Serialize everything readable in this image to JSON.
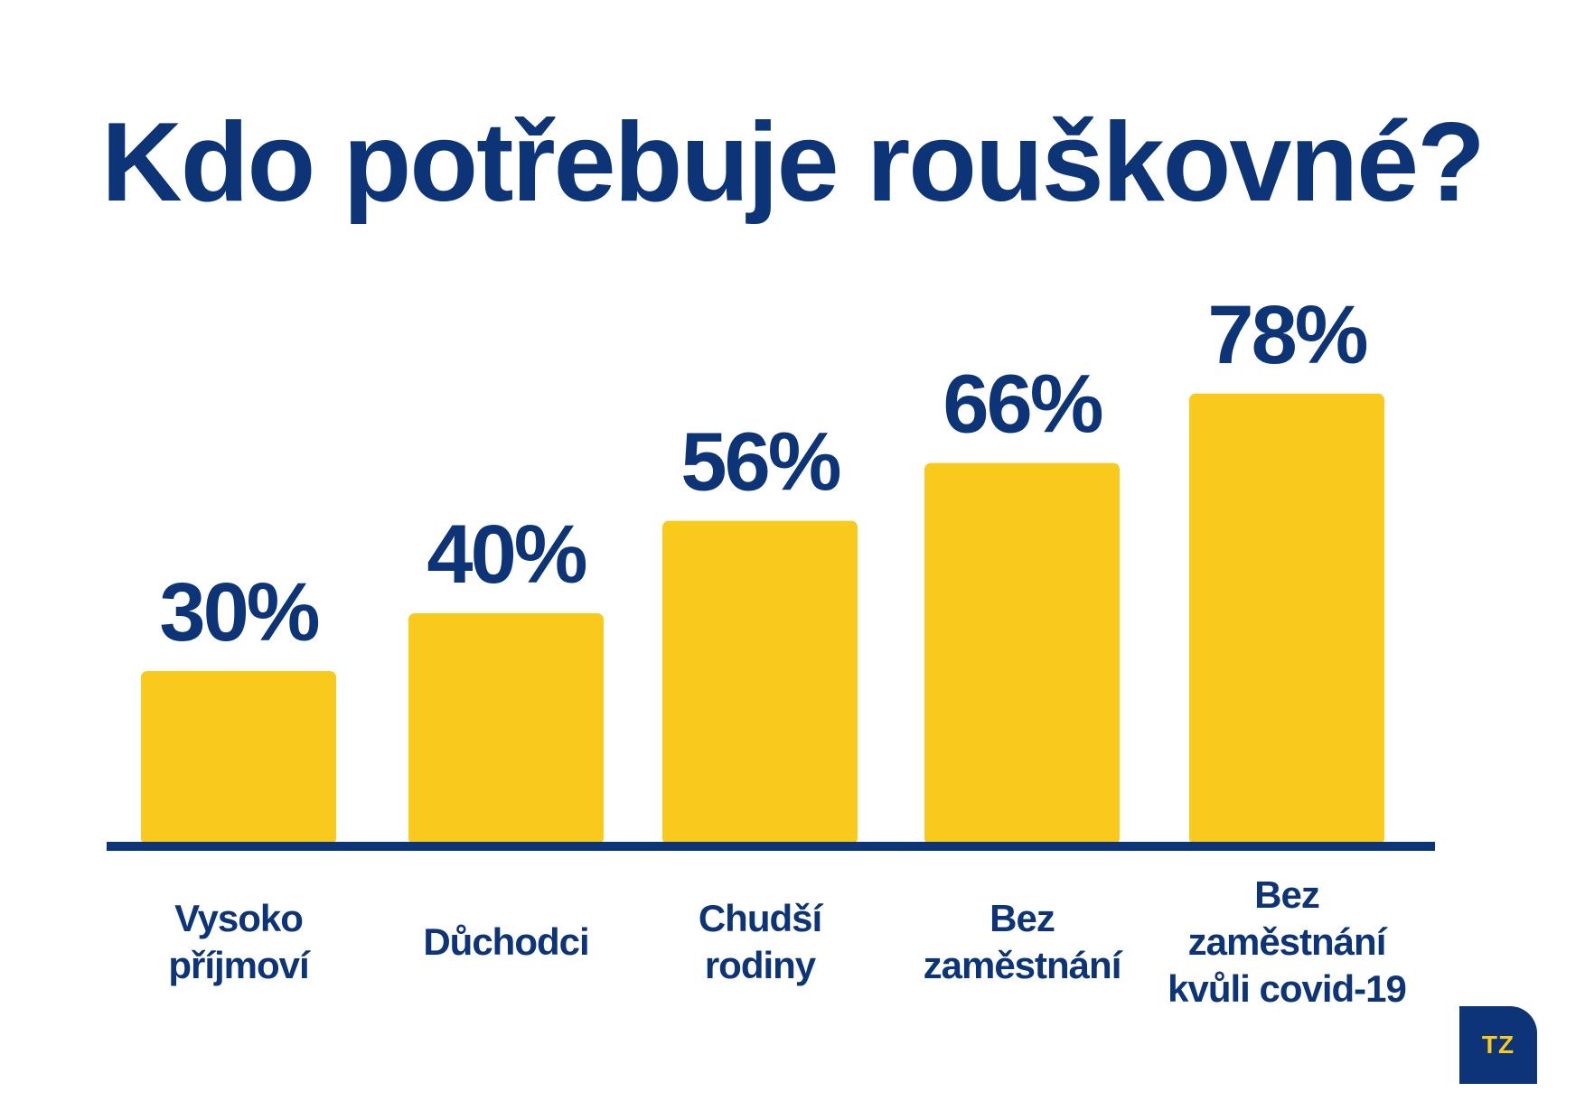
{
  "colors": {
    "bar": "#f9c91b",
    "text": "#0c3477",
    "axis": "#0c3477"
  },
  "logo": {
    "text": "TZ"
  },
  "chart_data": {
    "type": "bar",
    "title": "Kdo potřebuje rouškovné?",
    "categories": [
      [
        "Vysoko",
        "příjmoví"
      ],
      [
        "Důchodci"
      ],
      [
        "Chudší",
        "rodiny"
      ],
      [
        "Bez",
        "zaměstnání"
      ],
      [
        "Bez",
        "zaměstnání",
        "kvůli covid-19"
      ]
    ],
    "values": [
      30,
      40,
      56,
      66,
      78
    ],
    "value_labels": [
      "30%",
      "40%",
      "56%",
      "66%",
      "78%"
    ],
    "ylim": [
      0,
      100
    ],
    "grid": false,
    "legend": "none"
  }
}
